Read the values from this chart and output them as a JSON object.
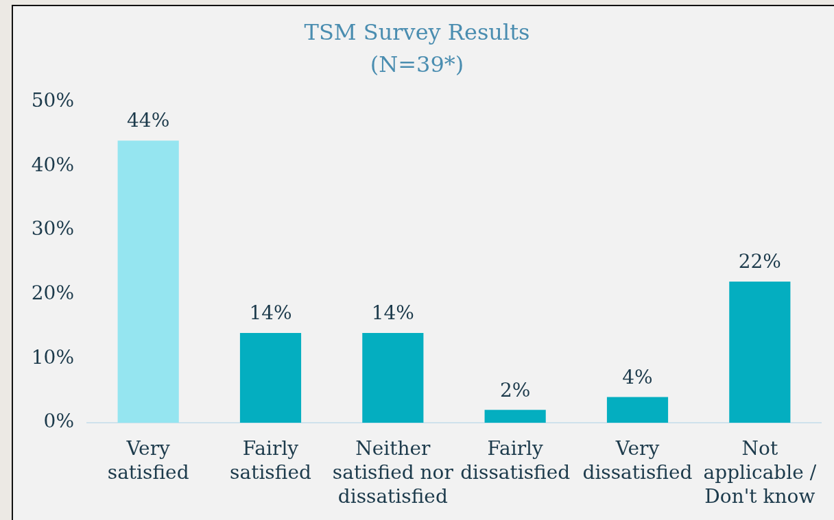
{
  "chart_data": {
    "type": "bar",
    "title": "TSM Survey Results",
    "subtitle": "(N=39*)",
    "categories": [
      "Very satisfied",
      "Fairly satisfied",
      "Neither satisfied nor dissatisfied",
      "Fairly dissatisfied",
      "Very dissatisfied",
      "Not applicable / Don't know"
    ],
    "values": [
      44,
      14,
      14,
      2,
      4,
      22
    ],
    "colors": [
      "#95e5f0",
      "#04aec0",
      "#04aec0",
      "#04aec0",
      "#04aec0",
      "#04aec0"
    ],
    "value_labels": [
      "44%",
      "14%",
      "14%",
      "2%",
      "4%",
      "22%"
    ],
    "ylim": [
      0,
      50
    ],
    "yticks": [
      {
        "value": 0,
        "label": "0%"
      },
      {
        "value": 10,
        "label": "10%"
      },
      {
        "value": 20,
        "label": "20%"
      },
      {
        "value": 30,
        "label": "30%"
      },
      {
        "value": 40,
        "label": "40%"
      },
      {
        "value": 50,
        "label": "50%"
      }
    ]
  }
}
